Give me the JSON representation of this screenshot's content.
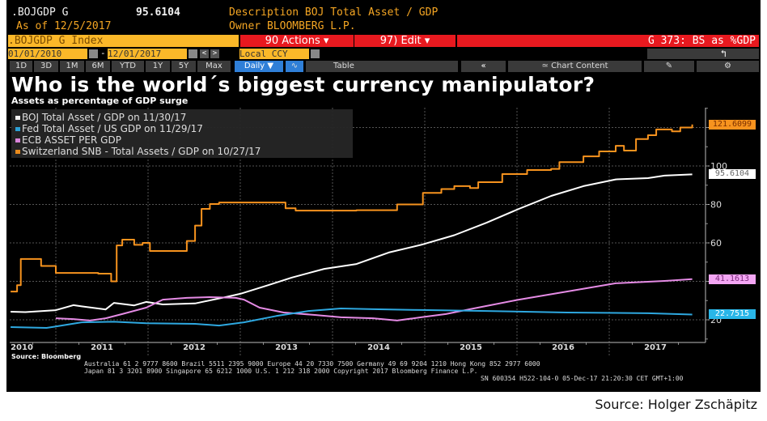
{
  "header": {
    "ticker": ".BOJGDP G",
    "last_value": "95.6104",
    "description": "Description BOJ Total Asset / GDP",
    "as_of": "As of 12/5/2017",
    "owner": "Owner BLOOMBERG L.P.",
    "security": ".BOJGDP G Index",
    "actions": "90 Actions ▾",
    "edit": "97) Edit ▾",
    "page": "G 373: BS as %GDP",
    "start_date": "01/01/2010",
    "end_date": "12/01/2017",
    "currency": "Local CCY",
    "periods": [
      "1D",
      "3D",
      "1M",
      "6M",
      "YTD",
      "1Y",
      "5Y",
      "Max"
    ],
    "frequency": "Daily ▼",
    "table": "Table",
    "chart_content": "Chart Content",
    "colors": {
      "amber": "#f5a623",
      "red": "#e8191f",
      "header_bar": "#fbb829"
    }
  },
  "chart_data": {
    "type": "line",
    "title": "Who is the world´s biggest currency manipulator?",
    "subtitle": "Assets as percentage of GDP surge",
    "x_ticks": [
      "2010",
      "2011",
      "2012",
      "2013",
      "2014",
      "2015",
      "2016",
      "2017"
    ],
    "y_ticks": [
      20,
      40,
      60,
      80,
      100,
      120
    ],
    "y_tick_labels": [
      "20",
      "",
      "60",
      "80",
      "100",
      ""
    ],
    "xlim": [
      2010.5,
      2018.04
    ],
    "ylim": [
      8,
      130
    ],
    "grid": true,
    "legend_placement": "top-left",
    "series": [
      {
        "name": "Switzerland SNB - Total Assets / GDP on 10/27/17",
        "color": "#f7931e",
        "step": true,
        "last_label": "121.6099",
        "points": [
          [
            2010.51,
            34.7
          ],
          [
            2010.58,
            38
          ],
          [
            2010.62,
            51.6
          ],
          [
            2010.84,
            48
          ],
          [
            2011.0,
            44.4
          ],
          [
            2011.46,
            44
          ],
          [
            2011.6,
            40
          ],
          [
            2011.66,
            58.7
          ],
          [
            2011.72,
            61.7
          ],
          [
            2011.85,
            59
          ],
          [
            2011.94,
            60
          ],
          [
            2012.02,
            55.8
          ],
          [
            2012.42,
            61
          ],
          [
            2012.51,
            69
          ],
          [
            2012.58,
            77.7
          ],
          [
            2012.67,
            80.2
          ],
          [
            2012.77,
            81
          ],
          [
            2013.49,
            78
          ],
          [
            2013.6,
            76.8
          ],
          [
            2014.26,
            77
          ],
          [
            2014.7,
            80
          ],
          [
            2014.98,
            86
          ],
          [
            2015.18,
            88
          ],
          [
            2015.32,
            89.5
          ],
          [
            2015.49,
            88.5
          ],
          [
            2015.58,
            91.6
          ],
          [
            2015.84,
            95.8
          ],
          [
            2016.11,
            97.9
          ],
          [
            2016.37,
            98.5
          ],
          [
            2016.46,
            102
          ],
          [
            2016.72,
            105
          ],
          [
            2016.89,
            107.6
          ],
          [
            2017.07,
            110.5
          ],
          [
            2017.16,
            108
          ],
          [
            2017.29,
            114
          ],
          [
            2017.42,
            116
          ],
          [
            2017.51,
            119
          ],
          [
            2017.68,
            118
          ],
          [
            2017.77,
            120
          ],
          [
            2017.9,
            121.61
          ]
        ]
      },
      {
        "name": "BOJ Total Asset / GDP  on 11/30/17",
        "color": "#ffffff",
        "step": false,
        "last_label": "95.6104",
        "points": [
          [
            2010.51,
            24.2
          ],
          [
            2010.67,
            24
          ],
          [
            2011.0,
            25
          ],
          [
            2011.19,
            27.6
          ],
          [
            2011.28,
            27
          ],
          [
            2011.54,
            25.4
          ],
          [
            2011.63,
            28.8
          ],
          [
            2011.85,
            27.5
          ],
          [
            2011.98,
            29.3
          ],
          [
            2012.16,
            28
          ],
          [
            2012.51,
            28.5
          ],
          [
            2012.86,
            32
          ],
          [
            2013.0,
            33.5
          ],
          [
            2013.3,
            38
          ],
          [
            2013.56,
            42
          ],
          [
            2013.91,
            46.5
          ],
          [
            2014.26,
            49
          ],
          [
            2014.61,
            55
          ],
          [
            2014.96,
            59
          ],
          [
            2015.32,
            64
          ],
          [
            2015.67,
            70.5
          ],
          [
            2016.02,
            77.7
          ],
          [
            2016.37,
            84.4
          ],
          [
            2016.72,
            89.5
          ],
          [
            2017.07,
            93
          ],
          [
            2017.42,
            93.7
          ],
          [
            2017.6,
            95
          ],
          [
            2017.9,
            95.61
          ]
        ]
      },
      {
        "name": "ECB ASSET PER GDP",
        "color": "#e58be5",
        "step": false,
        "last_label": "41.1613",
        "points": [
          [
            2011.0,
            20.8
          ],
          [
            2011.19,
            20.4
          ],
          [
            2011.37,
            19.6
          ],
          [
            2011.54,
            20.8
          ],
          [
            2011.72,
            23
          ],
          [
            2011.98,
            26.3
          ],
          [
            2012.16,
            30.5
          ],
          [
            2012.42,
            31.4
          ],
          [
            2012.67,
            31.8
          ],
          [
            2012.95,
            31.4
          ],
          [
            2013.04,
            30.5
          ],
          [
            2013.21,
            26.3
          ],
          [
            2013.47,
            23.8
          ],
          [
            2013.82,
            22.5
          ],
          [
            2014.09,
            21.3
          ],
          [
            2014.44,
            20.8
          ],
          [
            2014.7,
            19.6
          ],
          [
            2014.96,
            21.3
          ],
          [
            2015.23,
            23
          ],
          [
            2015.49,
            25.5
          ],
          [
            2016.02,
            30.5
          ],
          [
            2016.54,
            34.7
          ],
          [
            2017.07,
            39
          ],
          [
            2017.6,
            40.2
          ],
          [
            2017.9,
            41.16
          ]
        ]
      },
      {
        "name": "Fed Total Asset / US GDP  on 11/29/17",
        "color": "#2ea8e0",
        "step": false,
        "last_label": "22.7515",
        "points": [
          [
            2010.51,
            16.2
          ],
          [
            2010.9,
            15.8
          ],
          [
            2011.0,
            16.5
          ],
          [
            2011.28,
            18.7
          ],
          [
            2011.63,
            19
          ],
          [
            2011.98,
            18.2
          ],
          [
            2012.51,
            17.9
          ],
          [
            2012.77,
            17
          ],
          [
            2013.04,
            18.7
          ],
          [
            2013.39,
            22
          ],
          [
            2013.74,
            24.6
          ],
          [
            2014.09,
            25.9
          ],
          [
            2014.44,
            25.5
          ],
          [
            2014.96,
            25.1
          ],
          [
            2015.67,
            24.6
          ],
          [
            2016.54,
            23.8
          ],
          [
            2017.42,
            23.4
          ],
          [
            2017.9,
            22.75
          ]
        ]
      }
    ],
    "legend": [
      {
        "label": "BOJ Total Asset / GDP  on 11/30/17",
        "color": "#ffffff"
      },
      {
        "label": "Fed Total Asset / US GDP  on 11/29/17",
        "color": "#2ea8e0"
      },
      {
        "label": "ECB ASSET PER GDP",
        "color": "#e58be5"
      },
      {
        "label": "Switzerland SNB - Total Assets / GDP on 10/27/17",
        "color": "#f7931e"
      }
    ]
  },
  "footer": {
    "source": "Source: Bloomberg",
    "line1": "Australia 61 2 9777 8600 Brazil 5511 2395 9000 Europe 44 20 7330 7500 Germany 49 69 9204 1210 Hong Kong 852 2977 6000",
    "line2": "Japan 81 3 3201 8900      Singapore 65 6212 1000      U.S. 1 212 318 2000        Copyright 2017 Bloomberg Finance L.P.",
    "line3": "SN 600354 H522-104-0 05-Dec-17 21:20:30 CET  GMT+1:00"
  },
  "credit": "Source: Holger Zschäpitz"
}
